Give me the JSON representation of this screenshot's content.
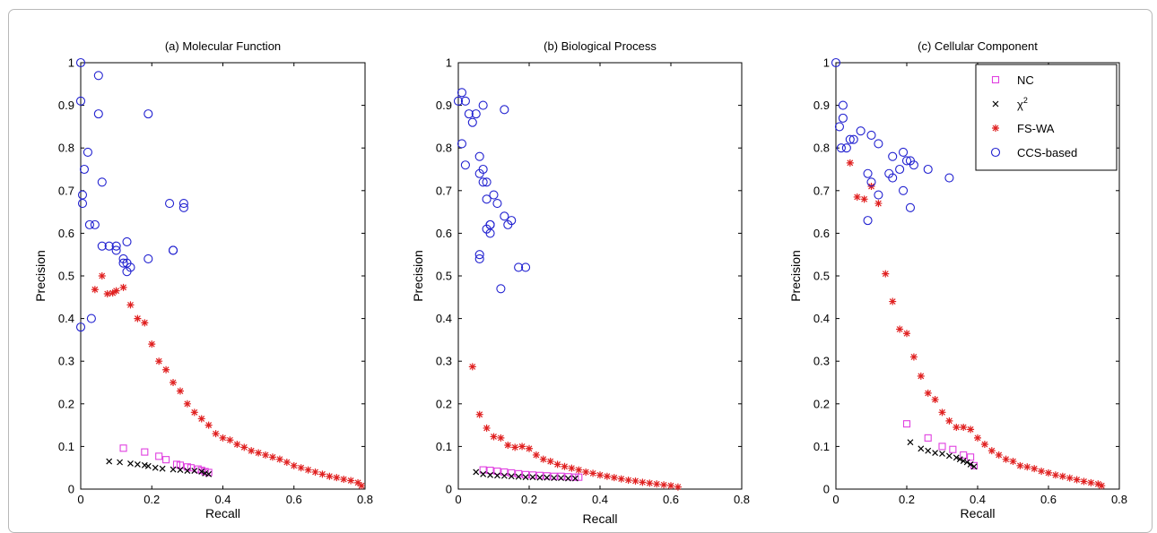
{
  "chart_data": [
    {
      "type": "scatter",
      "title": "(a) Molecular Function",
      "xlabel": "Recall",
      "ylabel": "Precision",
      "xlim": [
        0,
        0.8
      ],
      "ylim": [
        0,
        1
      ],
      "xticks": [
        "0",
        "0.2",
        "0.4",
        "0.6",
        "0.8"
      ],
      "yticks": [
        "0",
        "0.1",
        "0.2",
        "0.3",
        "0.4",
        "0.5",
        "0.6",
        "0.7",
        "0.8",
        "0.9",
        "1"
      ],
      "grid": false,
      "series": [
        {
          "name": "NC",
          "marker": "square",
          "color": "#e040e0",
          "x": [
            0.12,
            0.18,
            0.22,
            0.24,
            0.27,
            0.28,
            0.3,
            0.31,
            0.33,
            0.34,
            0.35,
            0.36
          ],
          "y": [
            0.096,
            0.087,
            0.077,
            0.069,
            0.058,
            0.056,
            0.052,
            0.05,
            0.047,
            0.044,
            0.041,
            0.039
          ]
        },
        {
          "name": "χ²",
          "marker": "x",
          "color": "#000000",
          "x": [
            0.08,
            0.11,
            0.14,
            0.16,
            0.18,
            0.19,
            0.21,
            0.23,
            0.26,
            0.28,
            0.3,
            0.32,
            0.34,
            0.35,
            0.36
          ],
          "y": [
            0.065,
            0.063,
            0.06,
            0.058,
            0.056,
            0.054,
            0.05,
            0.048,
            0.046,
            0.045,
            0.043,
            0.043,
            0.041,
            0.037,
            0.035
          ]
        },
        {
          "name": "FS-WA",
          "marker": "star",
          "color": "#e02020",
          "x": [
            0.04,
            0.06,
            0.075,
            0.09,
            0.1,
            0.12,
            0.14,
            0.16,
            0.18,
            0.2,
            0.22,
            0.24,
            0.26,
            0.28,
            0.3,
            0.32,
            0.34,
            0.36,
            0.38,
            0.4,
            0.42,
            0.44,
            0.46,
            0.48,
            0.5,
            0.52,
            0.54,
            0.56,
            0.58,
            0.6,
            0.62,
            0.64,
            0.66,
            0.68,
            0.7,
            0.72,
            0.74,
            0.76,
            0.78,
            0.79
          ],
          "y": [
            0.468,
            0.5,
            0.458,
            0.46,
            0.465,
            0.473,
            0.432,
            0.4,
            0.39,
            0.34,
            0.3,
            0.28,
            0.25,
            0.23,
            0.2,
            0.18,
            0.165,
            0.15,
            0.13,
            0.12,
            0.115,
            0.105,
            0.098,
            0.09,
            0.085,
            0.08,
            0.075,
            0.07,
            0.063,
            0.055,
            0.05,
            0.045,
            0.04,
            0.035,
            0.03,
            0.027,
            0.023,
            0.02,
            0.015,
            0.008
          ]
        },
        {
          "name": "CCS-based",
          "marker": "circle",
          "color": "#2020d0",
          "x": [
            0,
            0,
            0.005,
            0.005,
            0.01,
            0.02,
            0.025,
            0.03,
            0.04,
            0.05,
            0.05,
            0.06,
            0.06,
            0.08,
            0.1,
            0.1,
            0.12,
            0.12,
            0.13,
            0.13,
            0.13,
            0.14,
            0.19,
            0.19,
            0.25,
            0.26,
            0.26,
            0.29,
            0.29,
            0
          ],
          "y": [
            1.0,
            0.91,
            0.69,
            0.67,
            0.75,
            0.79,
            0.62,
            0.4,
            0.62,
            0.97,
            0.88,
            0.72,
            0.57,
            0.57,
            0.57,
            0.56,
            0.54,
            0.53,
            0.58,
            0.53,
            0.51,
            0.52,
            0.88,
            0.54,
            0.67,
            0.56,
            0.56,
            0.67,
            0.66,
            0.38
          ]
        }
      ]
    },
    {
      "type": "scatter",
      "title": "(b) Biological Process",
      "xlabel": "Recall",
      "ylabel": "Precision",
      "xlim": [
        0,
        0.8
      ],
      "ylim": [
        0,
        1
      ],
      "xticks": [
        "0",
        "0.2",
        "0.4",
        "0.6",
        "0.8"
      ],
      "yticks": [
        "0",
        "0.1",
        "0.2",
        "0.3",
        "0.4",
        "0.5",
        "0.6",
        "0.7",
        "0.8",
        "0.9",
        "1"
      ],
      "grid": false,
      "series": [
        {
          "name": "NC",
          "marker": "square",
          "color": "#e040e0",
          "x": [
            0.07,
            0.09,
            0.11,
            0.13,
            0.15,
            0.17,
            0.19,
            0.21,
            0.23,
            0.25,
            0.27,
            0.29,
            0.31,
            0.33,
            0.34
          ],
          "y": [
            0.045,
            0.044,
            0.042,
            0.04,
            0.038,
            0.036,
            0.034,
            0.033,
            0.032,
            0.031,
            0.03,
            0.03,
            0.029,
            0.028,
            0.028
          ]
        },
        {
          "name": "χ²",
          "marker": "x",
          "color": "#000000",
          "x": [
            0.05,
            0.07,
            0.09,
            0.11,
            0.13,
            0.15,
            0.17,
            0.19,
            0.21,
            0.23,
            0.25,
            0.27,
            0.29,
            0.31,
            0.33
          ],
          "y": [
            0.04,
            0.035,
            0.033,
            0.032,
            0.031,
            0.03,
            0.029,
            0.028,
            0.028,
            0.027,
            0.027,
            0.026,
            0.026,
            0.025,
            0.025
          ]
        },
        {
          "name": "FS-WA",
          "marker": "star",
          "color": "#e02020",
          "x": [
            0.04,
            0.06,
            0.08,
            0.1,
            0.12,
            0.14,
            0.16,
            0.18,
            0.2,
            0.22,
            0.24,
            0.26,
            0.28,
            0.3,
            0.32,
            0.34,
            0.36,
            0.38,
            0.4,
            0.42,
            0.44,
            0.46,
            0.48,
            0.5,
            0.52,
            0.54,
            0.56,
            0.58,
            0.6,
            0.62
          ],
          "y": [
            0.287,
            0.175,
            0.143,
            0.123,
            0.12,
            0.103,
            0.098,
            0.1,
            0.095,
            0.08,
            0.07,
            0.065,
            0.058,
            0.053,
            0.049,
            0.045,
            0.04,
            0.037,
            0.033,
            0.03,
            0.027,
            0.024,
            0.021,
            0.019,
            0.016,
            0.014,
            0.012,
            0.01,
            0.008,
            0.005
          ]
        },
        {
          "name": "CCS-based",
          "marker": "circle",
          "color": "#2020d0",
          "x": [
            0,
            0.01,
            0.01,
            0.02,
            0.02,
            0.03,
            0.04,
            0.05,
            0.06,
            0.06,
            0.06,
            0.07,
            0.07,
            0.07,
            0.08,
            0.08,
            0.08,
            0.09,
            0.09,
            0.1,
            0.11,
            0.12,
            0.13,
            0.13,
            0.14,
            0.15,
            0.17,
            0.19,
            0.06,
            0.09
          ],
          "y": [
            0.91,
            0.93,
            0.81,
            0.91,
            0.76,
            0.88,
            0.86,
            0.88,
            0.78,
            0.55,
            0.54,
            0.9,
            0.75,
            0.72,
            0.72,
            0.68,
            0.61,
            0.62,
            0.6,
            0.69,
            0.67,
            0.47,
            0.89,
            0.64,
            0.62,
            0.63,
            0.52,
            0.52,
            0.74,
            0.62
          ]
        }
      ]
    },
    {
      "type": "scatter",
      "title": "(c) Cellular Component",
      "xlabel": "Recall",
      "ylabel": "Precision",
      "xlim": [
        0,
        0.8
      ],
      "ylim": [
        0,
        1
      ],
      "xticks": [
        "0",
        "0.2",
        "0.4",
        "0.6",
        "0.8"
      ],
      "yticks": [
        "0",
        "0.1",
        "0.2",
        "0.3",
        "0.4",
        "0.5",
        "0.6",
        "0.7",
        "0.8",
        "0.9",
        "1"
      ],
      "grid": false,
      "legend": {
        "position": "top-right"
      },
      "series": [
        {
          "name": "NC",
          "marker": "square",
          "color": "#e040e0",
          "x": [
            0.2,
            0.26,
            0.3,
            0.33,
            0.36,
            0.38,
            0.39
          ],
          "y": [
            0.153,
            0.12,
            0.1,
            0.093,
            0.08,
            0.075,
            0.055
          ]
        },
        {
          "name": "χ²",
          "marker": "x",
          "color": "#000000",
          "x": [
            0.21,
            0.24,
            0.26,
            0.28,
            0.3,
            0.32,
            0.34,
            0.35,
            0.36,
            0.37,
            0.38,
            0.39
          ],
          "y": [
            0.11,
            0.095,
            0.09,
            0.085,
            0.083,
            0.078,
            0.074,
            0.07,
            0.066,
            0.063,
            0.058,
            0.053
          ]
        },
        {
          "name": "FS-WA",
          "marker": "star",
          "color": "#e02020",
          "x": [
            0.04,
            0.06,
            0.08,
            0.1,
            0.12,
            0.14,
            0.16,
            0.18,
            0.2,
            0.22,
            0.24,
            0.26,
            0.28,
            0.3,
            0.32,
            0.34,
            0.36,
            0.38,
            0.4,
            0.42,
            0.44,
            0.46,
            0.48,
            0.5,
            0.52,
            0.54,
            0.56,
            0.58,
            0.6,
            0.62,
            0.64,
            0.66,
            0.68,
            0.7,
            0.72,
            0.74,
            0.75
          ],
          "y": [
            0.765,
            0.685,
            0.68,
            0.71,
            0.67,
            0.505,
            0.44,
            0.375,
            0.365,
            0.31,
            0.265,
            0.225,
            0.21,
            0.18,
            0.16,
            0.145,
            0.145,
            0.14,
            0.12,
            0.105,
            0.09,
            0.08,
            0.07,
            0.065,
            0.055,
            0.052,
            0.048,
            0.042,
            0.038,
            0.033,
            0.03,
            0.026,
            0.022,
            0.018,
            0.015,
            0.012,
            0.008
          ]
        },
        {
          "name": "CCS-based",
          "marker": "circle",
          "color": "#2020d0",
          "x": [
            0,
            0.01,
            0.015,
            0.02,
            0.02,
            0.03,
            0.04,
            0.05,
            0.07,
            0.09,
            0.09,
            0.1,
            0.1,
            0.12,
            0.12,
            0.15,
            0.16,
            0.16,
            0.18,
            0.19,
            0.19,
            0.2,
            0.21,
            0.21,
            0.22,
            0.26,
            0.32
          ],
          "y": [
            1.0,
            0.85,
            0.8,
            0.87,
            0.9,
            0.8,
            0.82,
            0.82,
            0.84,
            0.74,
            0.63,
            0.83,
            0.72,
            0.69,
            0.81,
            0.74,
            0.73,
            0.78,
            0.75,
            0.79,
            0.7,
            0.77,
            0.77,
            0.66,
            0.76,
            0.75,
            0.73
          ]
        }
      ]
    }
  ]
}
